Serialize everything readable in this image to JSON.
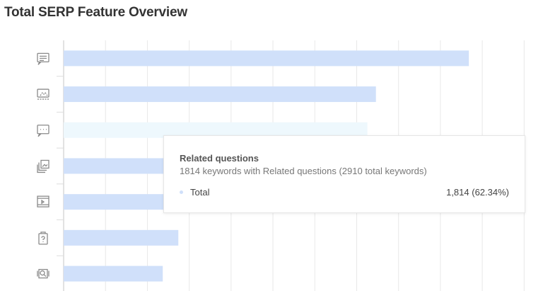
{
  "title": "Total SERP Feature Overview",
  "colors": {
    "bar": "#d0e0fa",
    "bar_hover": "#eef8fd",
    "grid": "#e8e8e8",
    "icon": "#8a8a8a"
  },
  "chart_data": {
    "type": "bar",
    "orientation": "horizontal",
    "title": "Total SERP Feature Overview",
    "categories": [
      "featured-snippet-icon",
      "image-pack-icon",
      "related-questions-icon",
      "images-icon",
      "video-icon",
      "faq-icon",
      "reviews-icon"
    ],
    "series": [
      {
        "name": "Total",
        "values": [
          2420,
          1865,
          1814,
          640,
          660,
          685,
          592
        ]
      }
    ],
    "xlim": [
      0,
      2850
    ],
    "grid": true,
    "highlighted_index": 2
  },
  "tooltip": {
    "title": "Related questions",
    "subtitle": "1814 keywords with Related questions (2910 total keywords)",
    "series_label": "Total",
    "value": "1,814 (62.34%)"
  }
}
